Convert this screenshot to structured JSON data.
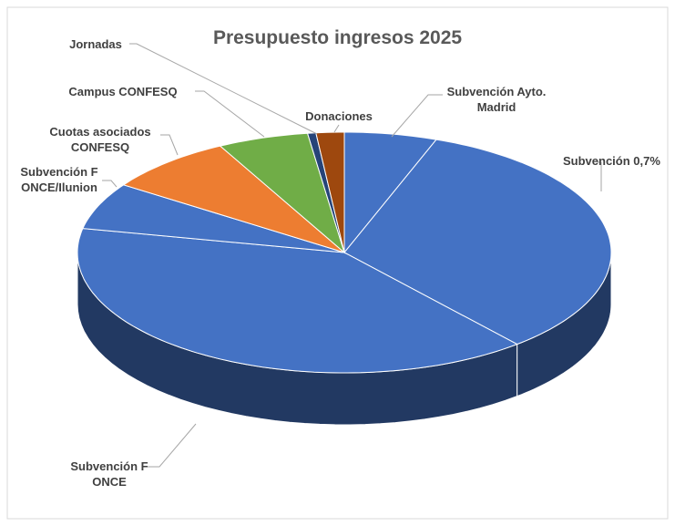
{
  "chart_data": {
    "type": "pie3d",
    "title": "Presupuesto ingresos 2025",
    "categories": [
      "Subvención Ayto. Madrid",
      "Subvención 0,7%",
      "Subvención F ONCE",
      "Subvención F ONCE/Ilunion",
      "Cuotas asociados CONFESQ",
      "Campus CONFESQ",
      "Jornadas",
      "Donaciones"
    ],
    "values": [
      5.6,
      33.2,
      39.4,
      6.3,
      7.8,
      5.5,
      0.5,
      1.7
    ],
    "colors": [
      "#4472c4",
      "#4472c4",
      "#4472c4",
      "#4472c4",
      "#ed7d31",
      "#70ad47",
      "#264478",
      "#9e480e"
    ]
  }
}
